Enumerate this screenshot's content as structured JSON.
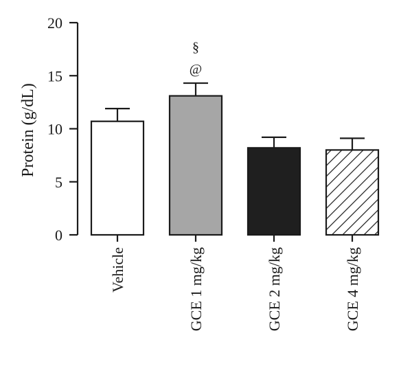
{
  "chart_data": {
    "type": "bar",
    "title": "",
    "xlabel": "",
    "ylabel": "Protein (g/dL)",
    "ylim": [
      0,
      20
    ],
    "yticks": [
      0,
      5,
      10,
      15,
      20
    ],
    "grid": false,
    "legend": "none",
    "categories": [
      "Vehicle",
      "GCE 1 mg/kg",
      "GCE 2 mg/kg",
      "GCE 4 mg/kg"
    ],
    "values": [
      10.7,
      13.1,
      8.2,
      8.0
    ],
    "error_upper": [
      1.2,
      1.2,
      1.0,
      1.1
    ],
    "fills": [
      "white",
      "#a6a6a6",
      "#1f1f1f",
      "hatched"
    ],
    "annotations": [
      {
        "category": "GCE 1 mg/kg",
        "labels": [
          "§",
          "@"
        ]
      }
    ]
  }
}
